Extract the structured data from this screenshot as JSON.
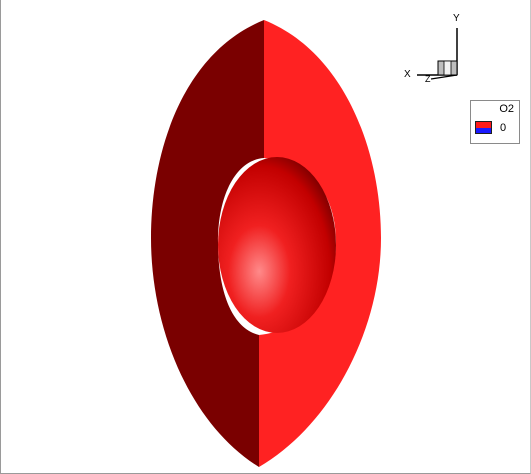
{
  "axes": {
    "x_label": "X",
    "y_label": "Y",
    "z_label": "Z"
  },
  "legend": {
    "title": "O2",
    "value_label": "0",
    "colors": {
      "top": "#ff1a1a",
      "bottom": "#1a1aff"
    }
  },
  "scene": {
    "icons": [
      "ellipsoid-shell",
      "inner-sphere",
      "axis-triad"
    ],
    "colors": {
      "shell_dark": "#7a0000",
      "shell_light": "#ff2222",
      "sphere_highlight": "#ff8a8a",
      "sphere_mid": "#ee1c1c",
      "sphere_edge": "#6b0000"
    }
  }
}
